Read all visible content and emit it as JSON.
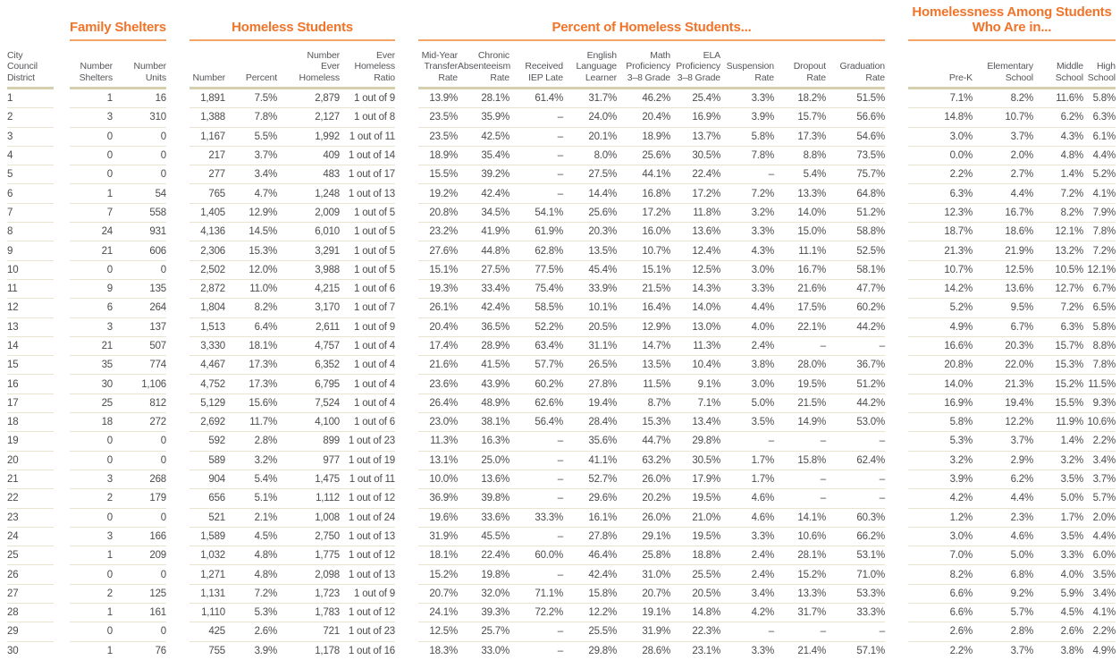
{
  "accent_color": "#f0742a",
  "accent_underline_color": "#f4a469",
  "header_rule_color": "#d5cfad",
  "row_rule_color": "#e9e4d0",
  "column_groups": [
    {
      "id": "district",
      "title": "",
      "columns": [
        {
          "id": "district",
          "label": "City Council\nDistrict"
        }
      ]
    },
    {
      "id": "family-shelters",
      "title": "Family Shelters",
      "columns": [
        {
          "id": "number-shelters",
          "label": "Number\nShelters"
        },
        {
          "id": "number-units",
          "label": "Number\nUnits"
        }
      ]
    },
    {
      "id": "homeless-students",
      "title": "Homeless Students",
      "columns": [
        {
          "id": "number",
          "label": "Number"
        },
        {
          "id": "percent",
          "label": "Percent"
        },
        {
          "id": "number-ever-homeless",
          "label": "Number\nEver\nHomeless"
        },
        {
          "id": "ever-homeless-ratio",
          "label": "Ever\nHomeless\nRatio"
        }
      ]
    },
    {
      "id": "percent-of-homeless-students",
      "title": "Percent of Homeless Students...",
      "columns": [
        {
          "id": "mid-year-transfer-rate",
          "label": "Mid-Year\nTransfer\nRate"
        },
        {
          "id": "chronic-absenteeism-rate",
          "label": "Chronic\nAbsenteeism\nRate"
        },
        {
          "id": "received-iep-late",
          "label": "Received\nIEP Late"
        },
        {
          "id": "english-language-learner",
          "label": "English\nLanguage\nLearner"
        },
        {
          "id": "math-proficiency-3-8-grade",
          "label": "Math\nProficiency\n3–8 Grade"
        },
        {
          "id": "ela-proficiency-3-8-grade",
          "label": "ELA\nProficiency\n3–8 Grade"
        },
        {
          "id": "suspension-rate",
          "label": "Suspension\nRate"
        },
        {
          "id": "dropout-rate",
          "label": "Dropout\nRate"
        },
        {
          "id": "graduation-rate",
          "label": "Graduation\nRate"
        }
      ]
    },
    {
      "id": "homelessness-among-students",
      "title": "Homelessness Among Students\nWho Are in...",
      "columns": [
        {
          "id": "pre-k",
          "label": "Pre-K"
        },
        {
          "id": "elementary-school",
          "label": "Elementary\nSchool"
        },
        {
          "id": "middle-school",
          "label": "Middle\nSchool"
        },
        {
          "id": "high-school",
          "label": "High\nSchool"
        }
      ]
    }
  ],
  "rows": [
    [
      "1",
      "1",
      "16",
      "1,891",
      "7.5%",
      "2,879",
      "1 out of 9",
      "13.9%",
      "28.1%",
      "61.4%",
      "31.7%",
      "46.2%",
      "25.4%",
      "3.3%",
      "18.2%",
      "51.5%",
      "7.1%",
      "8.2%",
      "11.6%",
      "5.8%"
    ],
    [
      "2",
      "3",
      "310",
      "1,388",
      "7.8%",
      "2,127",
      "1 out of 8",
      "23.5%",
      "35.9%",
      "–",
      "24.0%",
      "20.4%",
      "16.9%",
      "3.9%",
      "15.7%",
      "56.6%",
      "14.8%",
      "10.7%",
      "6.2%",
      "6.3%"
    ],
    [
      "3",
      "0",
      "0",
      "1,167",
      "5.5%",
      "1,992",
      "1 out of 11",
      "23.5%",
      "42.5%",
      "–",
      "20.1%",
      "18.9%",
      "13.7%",
      "5.8%",
      "17.3%",
      "54.6%",
      "3.0%",
      "3.7%",
      "4.3%",
      "6.1%"
    ],
    [
      "4",
      "0",
      "0",
      "217",
      "3.7%",
      "409",
      "1 out of 14",
      "18.9%",
      "35.4%",
      "–",
      "8.0%",
      "25.6%",
      "30.5%",
      "7.8%",
      "8.8%",
      "73.5%",
      "0.0%",
      "2.0%",
      "4.8%",
      "4.4%"
    ],
    [
      "5",
      "0",
      "0",
      "277",
      "3.4%",
      "483",
      "1 out of 17",
      "15.5%",
      "39.2%",
      "–",
      "27.5%",
      "44.1%",
      "22.4%",
      "–",
      "5.4%",
      "75.7%",
      "2.2%",
      "2.7%",
      "1.4%",
      "5.2%"
    ],
    [
      "6",
      "1",
      "54",
      "765",
      "4.7%",
      "1,248",
      "1 out of 13",
      "19.2%",
      "42.4%",
      "–",
      "14.4%",
      "16.8%",
      "17.2%",
      "7.2%",
      "13.3%",
      "64.8%",
      "6.3%",
      "4.4%",
      "7.2%",
      "4.1%"
    ],
    [
      "7",
      "7",
      "558",
      "1,405",
      "12.9%",
      "2,009",
      "1 out of 5",
      "20.8%",
      "34.5%",
      "54.1%",
      "25.6%",
      "17.2%",
      "11.8%",
      "3.2%",
      "14.0%",
      "51.2%",
      "12.3%",
      "16.7%",
      "8.2%",
      "7.9%"
    ],
    [
      "8",
      "24",
      "931",
      "4,136",
      "14.5%",
      "6,010",
      "1 out of 5",
      "23.2%",
      "41.9%",
      "61.9%",
      "20.3%",
      "16.0%",
      "13.6%",
      "3.3%",
      "15.0%",
      "58.8%",
      "18.7%",
      "18.6%",
      "12.1%",
      "7.8%"
    ],
    [
      "9",
      "21",
      "606",
      "2,306",
      "15.3%",
      "3,291",
      "1 out of 5",
      "27.6%",
      "44.8%",
      "62.8%",
      "13.5%",
      "10.7%",
      "12.4%",
      "4.3%",
      "11.1%",
      "52.5%",
      "21.3%",
      "21.9%",
      "13.2%",
      "7.2%"
    ],
    [
      "10",
      "0",
      "0",
      "2,502",
      "12.0%",
      "3,988",
      "1 out of 5",
      "15.1%",
      "27.5%",
      "77.5%",
      "45.4%",
      "15.1%",
      "12.5%",
      "3.0%",
      "16.7%",
      "58.1%",
      "10.7%",
      "12.5%",
      "10.5%",
      "12.1%"
    ],
    [
      "11",
      "9",
      "135",
      "2,872",
      "11.0%",
      "4,215",
      "1 out of 6",
      "19.3%",
      "33.4%",
      "75.4%",
      "33.9%",
      "21.5%",
      "14.3%",
      "3.3%",
      "21.6%",
      "47.7%",
      "14.2%",
      "13.6%",
      "12.7%",
      "6.7%"
    ],
    [
      "12",
      "6",
      "264",
      "1,804",
      "8.2%",
      "3,170",
      "1 out of 7",
      "26.1%",
      "42.4%",
      "58.5%",
      "10.1%",
      "16.4%",
      "14.0%",
      "4.4%",
      "17.5%",
      "60.2%",
      "5.2%",
      "9.5%",
      "7.2%",
      "6.5%"
    ],
    [
      "13",
      "3",
      "137",
      "1,513",
      "6.4%",
      "2,611",
      "1 out of 9",
      "20.4%",
      "36.5%",
      "52.2%",
      "20.5%",
      "12.9%",
      "13.0%",
      "4.0%",
      "22.1%",
      "44.2%",
      "4.9%",
      "6.7%",
      "6.3%",
      "5.8%"
    ],
    [
      "14",
      "21",
      "507",
      "3,330",
      "18.1%",
      "4,757",
      "1 out of 4",
      "17.4%",
      "28.9%",
      "63.4%",
      "31.1%",
      "14.7%",
      "11.3%",
      "2.4%",
      "–",
      "–",
      "16.6%",
      "20.3%",
      "15.7%",
      "8.8%"
    ],
    [
      "15",
      "35",
      "774",
      "4,467",
      "17.3%",
      "6,352",
      "1 out of 4",
      "21.6%",
      "41.5%",
      "57.7%",
      "26.5%",
      "13.5%",
      "10.4%",
      "3.8%",
      "28.0%",
      "36.7%",
      "20.8%",
      "22.0%",
      "15.3%",
      "7.8%"
    ],
    [
      "16",
      "30",
      "1,106",
      "4,752",
      "17.3%",
      "6,795",
      "1 out of 4",
      "23.6%",
      "43.9%",
      "60.2%",
      "27.8%",
      "11.5%",
      "9.1%",
      "3.0%",
      "19.5%",
      "51.2%",
      "14.0%",
      "21.3%",
      "15.2%",
      "11.5%"
    ],
    [
      "17",
      "25",
      "812",
      "5,129",
      "15.6%",
      "7,524",
      "1 out of 4",
      "26.4%",
      "48.9%",
      "62.6%",
      "19.4%",
      "8.7%",
      "7.1%",
      "5.0%",
      "21.5%",
      "44.2%",
      "16.9%",
      "19.4%",
      "15.5%",
      "9.3%"
    ],
    [
      "18",
      "18",
      "272",
      "2,692",
      "11.7%",
      "4,100",
      "1 out of 6",
      "23.0%",
      "38.1%",
      "56.4%",
      "28.4%",
      "15.3%",
      "13.4%",
      "3.5%",
      "14.9%",
      "53.0%",
      "5.8%",
      "12.2%",
      "11.9%",
      "10.6%"
    ],
    [
      "19",
      "0",
      "0",
      "592",
      "2.8%",
      "899",
      "1 out of 23",
      "11.3%",
      "16.3%",
      "–",
      "35.6%",
      "44.7%",
      "29.8%",
      "–",
      "–",
      "–",
      "5.3%",
      "3.7%",
      "1.4%",
      "2.2%"
    ],
    [
      "20",
      "0",
      "0",
      "589",
      "3.2%",
      "977",
      "1 out of 19",
      "13.1%",
      "25.0%",
      "–",
      "41.1%",
      "63.2%",
      "30.5%",
      "1.7%",
      "15.8%",
      "62.4%",
      "3.2%",
      "2.9%",
      "3.2%",
      "3.4%"
    ],
    [
      "21",
      "3",
      "268",
      "904",
      "5.4%",
      "1,475",
      "1 out of 11",
      "10.0%",
      "13.6%",
      "–",
      "52.7%",
      "26.0%",
      "17.9%",
      "1.7%",
      "–",
      "–",
      "3.9%",
      "6.2%",
      "3.5%",
      "3.7%"
    ],
    [
      "22",
      "2",
      "179",
      "656",
      "5.1%",
      "1,112",
      "1 out of 12",
      "36.9%",
      "39.8%",
      "–",
      "29.6%",
      "20.2%",
      "19.5%",
      "4.6%",
      "–",
      "–",
      "4.2%",
      "4.4%",
      "5.0%",
      "5.7%"
    ],
    [
      "23",
      "0",
      "0",
      "521",
      "2.1%",
      "1,008",
      "1 out of 24",
      "19.6%",
      "33.6%",
      "33.3%",
      "16.1%",
      "26.0%",
      "21.0%",
      "4.6%",
      "14.1%",
      "60.3%",
      "1.2%",
      "2.3%",
      "1.7%",
      "2.0%"
    ],
    [
      "24",
      "3",
      "166",
      "1,589",
      "4.5%",
      "2,750",
      "1 out of 13",
      "31.9%",
      "45.5%",
      "–",
      "27.8%",
      "29.1%",
      "19.5%",
      "3.3%",
      "10.6%",
      "66.2%",
      "3.0%",
      "4.6%",
      "3.5%",
      "4.4%"
    ],
    [
      "25",
      "1",
      "209",
      "1,032",
      "4.8%",
      "1,775",
      "1 out of 12",
      "18.1%",
      "22.4%",
      "60.0%",
      "46.4%",
      "25.8%",
      "18.8%",
      "2.4%",
      "28.1%",
      "53.1%",
      "7.0%",
      "5.0%",
      "3.3%",
      "6.0%"
    ],
    [
      "26",
      "0",
      "0",
      "1,271",
      "4.8%",
      "2,098",
      "1 out of 13",
      "15.2%",
      "19.8%",
      "–",
      "42.4%",
      "31.0%",
      "25.5%",
      "2.4%",
      "15.2%",
      "71.0%",
      "8.2%",
      "6.8%",
      "4.0%",
      "3.5%"
    ],
    [
      "27",
      "2",
      "125",
      "1,131",
      "7.2%",
      "1,723",
      "1 out of 9",
      "20.7%",
      "32.0%",
      "71.1%",
      "15.8%",
      "20.7%",
      "20.5%",
      "3.4%",
      "13.3%",
      "53.3%",
      "6.6%",
      "9.2%",
      "5.9%",
      "3.4%"
    ],
    [
      "28",
      "1",
      "161",
      "1,110",
      "5.3%",
      "1,783",
      "1 out of 12",
      "24.1%",
      "39.3%",
      "72.2%",
      "12.2%",
      "19.1%",
      "14.8%",
      "4.2%",
      "31.7%",
      "33.3%",
      "6.6%",
      "5.7%",
      "4.5%",
      "4.1%"
    ],
    [
      "29",
      "0",
      "0",
      "425",
      "2.6%",
      "721",
      "1 out of 23",
      "12.5%",
      "25.7%",
      "–",
      "25.5%",
      "31.9%",
      "22.3%",
      "–",
      "–",
      "–",
      "2.6%",
      "2.8%",
      "2.6%",
      "2.2%"
    ],
    [
      "30",
      "1",
      "76",
      "755",
      "3.9%",
      "1,178",
      "1 out of 16",
      "18.3%",
      "33.0%",
      "–",
      "29.8%",
      "28.6%",
      "23.1%",
      "3.3%",
      "21.4%",
      "57.1%",
      "2.2%",
      "3.7%",
      "3.8%",
      "4.9%"
    ]
  ]
}
